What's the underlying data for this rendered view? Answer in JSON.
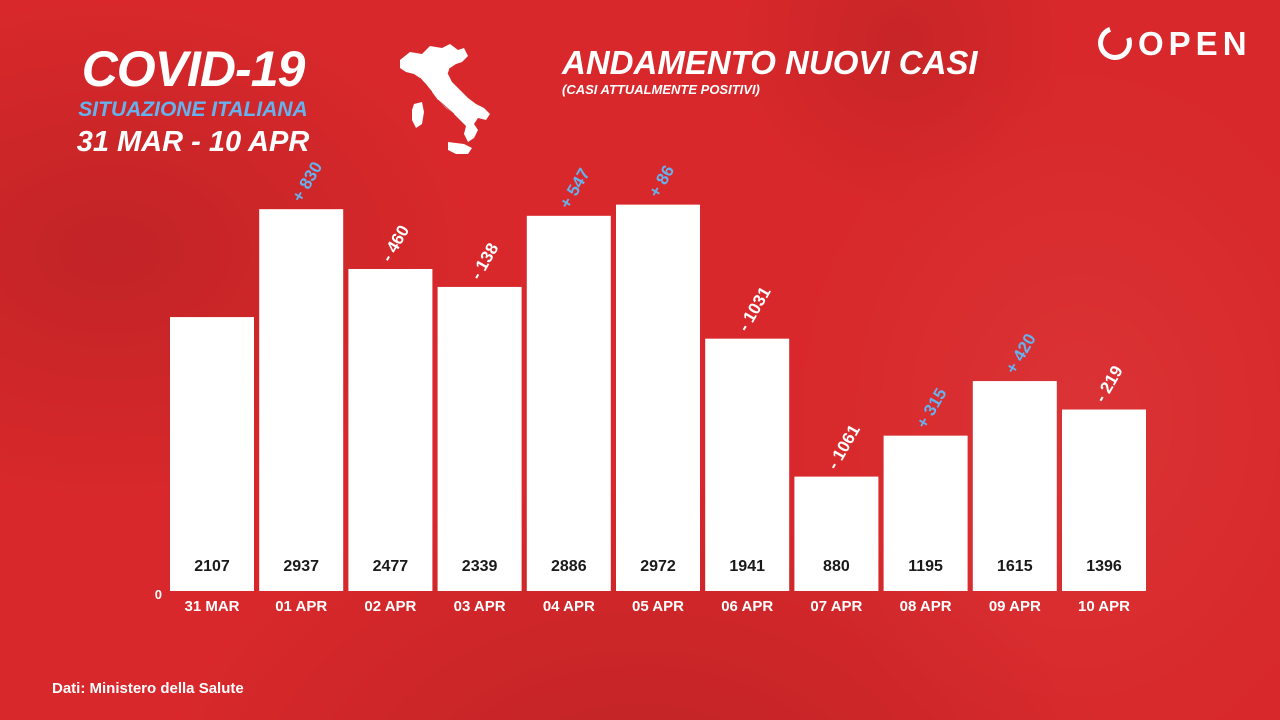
{
  "headline": {
    "title": "COVID-19",
    "subtitle": "SITUAZIONE ITALIANA",
    "date_range": "31 MAR - 10 APR"
  },
  "brand": {
    "name": "OPEN",
    "logo_icon": "open-logo-icon"
  },
  "map_icon": "italy-map-icon",
  "source": "Dati: Ministero della Salute",
  "colors": {
    "background": "#d8282b",
    "bar": "#ffffff",
    "increase_label": "#66b2ee",
    "decrease_label": "#ffffff",
    "value_label": "#1a1a1a"
  },
  "chart_data": {
    "type": "bar",
    "title": "ANDAMENTO NUOVI CASI",
    "subtitle": "(CASI ATTUALMENTE POSITIVI)",
    "xlabel": "",
    "ylabel": "",
    "ylim": [
      0,
      3000
    ],
    "y_tick_labels": [
      "0"
    ],
    "grid": false,
    "categories": [
      "31 MAR",
      "01 APR",
      "02 APR",
      "03 APR",
      "04 APR",
      "05 APR",
      "06 APR",
      "07 APR",
      "08 APR",
      "09 APR",
      "10 APR"
    ],
    "values": [
      2107,
      2937,
      2477,
      2339,
      2886,
      2972,
      1941,
      880,
      1195,
      1615,
      1396
    ],
    "value_labels": [
      "2107",
      "2937",
      "2477",
      "2339",
      "2886",
      "2972",
      "1941",
      "880",
      "1195",
      "1615",
      "1396"
    ],
    "change_labels": [
      "",
      "+ 830",
      "- 460",
      "- 138",
      "+ 547",
      "+ 86",
      "- 1031",
      "- 1061",
      "+ 315",
      "+ 420",
      "- 219"
    ]
  }
}
